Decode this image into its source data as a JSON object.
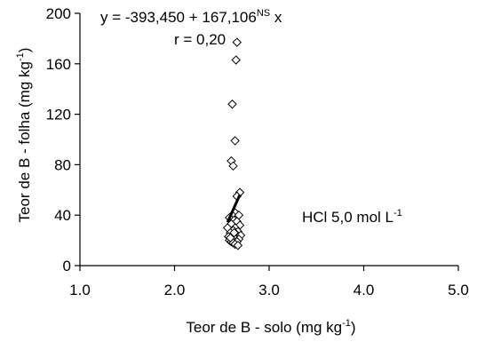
{
  "chart_data": {
    "type": "scatter",
    "xlabel": "Teor de B - solo (mg kg",
    "xlabel_sup": "-1",
    "xlabel_end": ")",
    "ylabel": "Teor de B - folha (mg kg",
    "ylabel_sup": "-1",
    "ylabel_end": ")",
    "xlim": [
      1.0,
      5.0
    ],
    "ylim": [
      0,
      200
    ],
    "xticks": [
      "1.0",
      "2.0",
      "3.0",
      "4.0",
      "5.0"
    ],
    "yticks": [
      "0",
      "40",
      "80",
      "120",
      "160",
      "200"
    ],
    "x_tick_values": [
      1,
      2,
      3,
      4,
      5
    ],
    "y_tick_values": [
      0,
      40,
      80,
      120,
      160,
      200
    ],
    "grid": false,
    "equation": "y = -393,450 + 167,106",
    "equation_sup": "NS",
    "equation_end": " x",
    "r_label": "r = 0,20",
    "label": "HCl 5,0 mol L",
    "label_sup": "-1",
    "label_end": "",
    "marker": "diamond-open",
    "regression": {
      "intercept": -393.45,
      "slope": 167.106,
      "x_range": [
        2.56,
        2.69
      ]
    },
    "points": [
      {
        "x": 2.66,
        "y": 177
      },
      {
        "x": 2.65,
        "y": 163
      },
      {
        "x": 2.61,
        "y": 128
      },
      {
        "x": 2.64,
        "y": 99
      },
      {
        "x": 2.6,
        "y": 83
      },
      {
        "x": 2.62,
        "y": 79
      },
      {
        "x": 2.69,
        "y": 58
      },
      {
        "x": 2.66,
        "y": 55
      },
      {
        "x": 2.64,
        "y": 42
      },
      {
        "x": 2.61,
        "y": 40
      },
      {
        "x": 2.68,
        "y": 40
      },
      {
        "x": 2.58,
        "y": 38
      },
      {
        "x": 2.63,
        "y": 36
      },
      {
        "x": 2.66,
        "y": 35
      },
      {
        "x": 2.6,
        "y": 33
      },
      {
        "x": 2.69,
        "y": 32
      },
      {
        "x": 2.56,
        "y": 30
      },
      {
        "x": 2.64,
        "y": 30
      },
      {
        "x": 2.62,
        "y": 28
      },
      {
        "x": 2.67,
        "y": 27
      },
      {
        "x": 2.59,
        "y": 26
      },
      {
        "x": 2.65,
        "y": 25
      },
      {
        "x": 2.7,
        "y": 24
      },
      {
        "x": 2.57,
        "y": 23
      },
      {
        "x": 2.61,
        "y": 22
      },
      {
        "x": 2.63,
        "y": 22
      },
      {
        "x": 2.68,
        "y": 21
      },
      {
        "x": 2.58,
        "y": 20
      },
      {
        "x": 2.6,
        "y": 19
      },
      {
        "x": 2.66,
        "y": 19
      },
      {
        "x": 2.62,
        "y": 18
      },
      {
        "x": 2.64,
        "y": 17
      },
      {
        "x": 2.67,
        "y": 16
      },
      {
        "x": 2.59,
        "y": 22
      },
      {
        "x": 2.63,
        "y": 26
      }
    ]
  }
}
